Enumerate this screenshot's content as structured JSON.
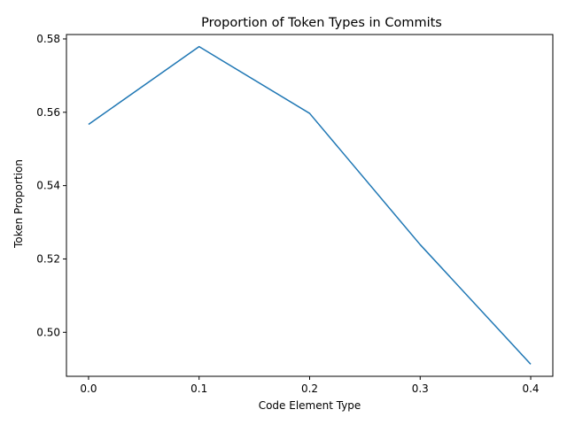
{
  "chart_data": {
    "type": "line",
    "title": "Proportion of Token Types in Commits",
    "xlabel": "Code Element Type",
    "ylabel": "Token Proportion",
    "x": [
      0.0,
      0.1,
      0.2,
      0.3,
      0.4
    ],
    "series": [
      {
        "values": [
          0.5567,
          0.5779,
          0.5597,
          0.5239,
          0.4913
        ],
        "color": "#1f77b4"
      }
    ],
    "xlim": [
      -0.02,
      0.42
    ],
    "ylim": [
      0.488,
      0.5812
    ],
    "xticks": [
      0.0,
      0.1,
      0.2,
      0.3,
      0.4
    ],
    "xtick_labels": [
      "0.0",
      "0.1",
      "0.2",
      "0.3",
      "0.4"
    ],
    "yticks": [
      0.5,
      0.52,
      0.54,
      0.56,
      0.58
    ],
    "ytick_labels": [
      "0.50",
      "0.52",
      "0.54",
      "0.56",
      "0.58"
    ],
    "grid": false,
    "legend": "none"
  }
}
